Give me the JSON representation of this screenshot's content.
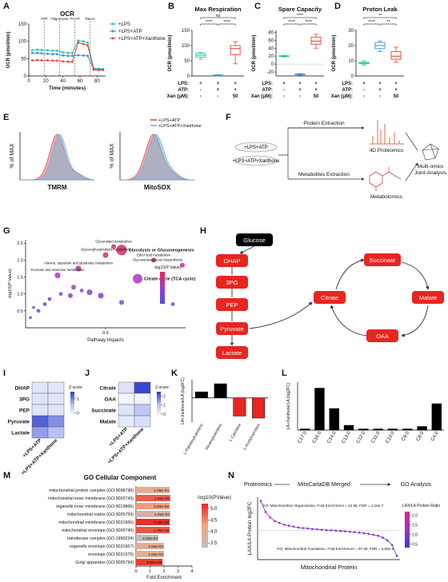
{
  "panel_labels": [
    "A",
    "B",
    "C",
    "D",
    "E",
    "F",
    "G",
    "H",
    "I",
    "J",
    "K",
    "L",
    "M",
    "N"
  ],
  "chart_data": [
    {
      "type": "line",
      "title": "OCR",
      "xlabel": "Time (minutes)",
      "ylabel": "OCR (pmol/min)",
      "x": [
        4,
        10,
        15,
        22,
        28,
        33,
        40,
        46,
        51,
        58,
        64,
        69,
        76,
        82,
        87
      ],
      "xlim": [
        0,
        90
      ],
      "ylim": [
        0,
        150
      ],
      "xticks": [
        0,
        20,
        40,
        60,
        80
      ],
      "yticks": [
        0,
        50,
        100,
        150
      ],
      "injections": {
        "labels": [
          "ATP",
          "Oligomycin",
          "FCCP",
          "R&AA"
        ],
        "x": [
          18,
          36,
          54,
          72
        ]
      },
      "series": [
        {
          "name": "+LPS",
          "color": "#26c6a4",
          "values": [
            74,
            76,
            75,
            74,
            73,
            73,
            68,
            67,
            66,
            102,
            100,
            96,
            22,
            21,
            20
          ]
        },
        {
          "name": "+LPS+ATP",
          "color": "#3a8fdf",
          "values": [
            66,
            66,
            65,
            64,
            63,
            63,
            59,
            58,
            58,
            60,
            59,
            58,
            20,
            19,
            19
          ]
        },
        {
          "name": "+LPS+ATP+Xanthone",
          "color": "#e8453c",
          "values": [
            45,
            46,
            45,
            45,
            44,
            44,
            42,
            41,
            41,
            97,
            92,
            88,
            18,
            17,
            17
          ]
        }
      ]
    },
    {
      "type": "box",
      "title": "Max Respiration",
      "ylabel": "OCR (pmol/min)",
      "ylim": [
        0,
        150
      ],
      "yticks": [
        0,
        50,
        100,
        150
      ],
      "groups": [
        {
          "color": "#26c6a4",
          "min": 55,
          "q1": 62,
          "median": 68,
          "q3": 74,
          "max": 78
        },
        {
          "color": "#3a8fdf",
          "min": 0,
          "q1": 1,
          "median": 2,
          "q3": 3,
          "max": 4
        },
        {
          "color": "#e8453c",
          "min": 40,
          "q1": 70,
          "median": 90,
          "q3": 100,
          "max": 112
        }
      ],
      "significance": [
        "ns",
        "****",
        "****"
      ],
      "conditions": {
        "labels": [
          "LPS:",
          "ATP:",
          "Xan (μM):"
        ],
        "cells": [
          [
            "+",
            "+",
            "+"
          ],
          [
            "-",
            "+",
            "+"
          ],
          [
            "-",
            "-",
            "50"
          ]
        ]
      }
    },
    {
      "type": "box",
      "title": "Spare Capacity",
      "ylabel": "OCR (pmol/min)",
      "ylim": [
        -30,
        85
      ],
      "yticks": [
        -20,
        0,
        20,
        40,
        60,
        80
      ],
      "groups": [
        {
          "color": "#26c6a4",
          "min": 18,
          "q1": 19,
          "median": 20,
          "q3": 21,
          "max": 22
        },
        {
          "color": "#3a8fdf",
          "min": -28,
          "q1": -27,
          "median": -26,
          "q3": -25,
          "max": -24
        },
        {
          "color": "#e8453c",
          "min": 40,
          "q1": 50,
          "median": 58,
          "q3": 68,
          "max": 75
        }
      ],
      "significance": [
        "****",
        "****",
        "****"
      ],
      "conditions": {
        "labels": [
          "LPS:",
          "ATP:",
          "Xan (μM):"
        ],
        "cells": [
          [
            "+",
            "+",
            "+"
          ],
          [
            "-",
            "+",
            "+"
          ],
          [
            "-",
            "-",
            "50"
          ]
        ]
      }
    },
    {
      "type": "box",
      "title": "Proton Leak",
      "ylabel": "OCR (pmol/min)",
      "ylim": [
        0,
        30
      ],
      "yticks": [
        0,
        10,
        20,
        30
      ],
      "groups": [
        {
          "color": "#26c6a4",
          "min": 7,
          "q1": 8,
          "median": 8.5,
          "q3": 9,
          "max": 10
        },
        {
          "color": "#3a8fdf",
          "min": 16,
          "q1": 18,
          "median": 20,
          "q3": 22,
          "max": 23
        },
        {
          "color": "#e8453c",
          "min": 9,
          "q1": 11,
          "median": 13,
          "q3": 16,
          "max": 19
        }
      ],
      "significance": [
        "**",
        "****",
        "**"
      ],
      "conditions": {
        "labels": [
          "LPS:",
          "ATP:",
          "Xan (μM):"
        ],
        "cells": [
          [
            "+",
            "+",
            "+"
          ],
          [
            "-",
            "+",
            "+"
          ],
          [
            "-",
            "-",
            "50"
          ]
        ]
      }
    },
    {
      "type": "flow-histogram",
      "ylabel": "% of MAX",
      "xlabels": [
        "TMRM",
        "MitoSOX"
      ],
      "series": [
        {
          "name": "+LPS+ATP",
          "color": "#e8453c"
        },
        {
          "name": "+LPS+ATP+Xanthone",
          "color": "#5ab4e8"
        }
      ]
    },
    {
      "type": "bubble",
      "xlabel": "Pathway Impacts",
      "ylabel": "-log10(P Value)",
      "legend_title": "-log10(P Value)",
      "xlim": [
        0,
        1
      ],
      "ylim": [
        0,
        2.6
      ],
      "xticks": [
        0.5
      ],
      "yticks": [
        0.5,
        {
          "value": 1,
          "label": "1.0"
        },
        1.5,
        {
          "value": 2,
          "label": "2.0"
        },
        2.5
      ],
      "labels": [
        "Glycerolipid metabolism",
        "Glycolysis or Gluconeogenesis",
        "Glycerophospholipid metabolism",
        "Ether lipid metabolism",
        "Alanine, aspartate and glutamate metabolism",
        "Glycosaminoglycan biosynthesis",
        "Fructose and mannose metabolism",
        "Citrate cycle (TCA cycle)",
        null,
        null,
        null,
        null,
        null,
        null,
        null,
        null,
        null,
        null,
        null,
        null,
        null
      ],
      "x": [
        0.55,
        0.6,
        0.5,
        0.8,
        0.33,
        0.98,
        0.2,
        0.7,
        0.3,
        0.35,
        0.4,
        0.22,
        0.28,
        0.15,
        0.12,
        0.05,
        0.08,
        0.03,
        0.47,
        0.6,
        0.92
      ],
      "y": [
        2.4,
        2.3,
        2.15,
        2.0,
        1.75,
        1.85,
        1.55,
        1.45,
        1.2,
        1.1,
        1.05,
        1.0,
        0.95,
        0.85,
        0.7,
        0.6,
        0.5,
        0.3,
        0.95,
        0.75,
        0.7
      ],
      "sizes": [
        4,
        10,
        5,
        4,
        5,
        4,
        5,
        9,
        4,
        3,
        5,
        3,
        4,
        3,
        3,
        2,
        3,
        2,
        5,
        4,
        3
      ]
    },
    {
      "type": "heatmap",
      "rows": [
        "DHAP",
        "3PG",
        "PEP",
        "Pyruvate",
        "Lactate"
      ],
      "columns": [
        "+LPS+ATP",
        "+LPS+ATP+Xanthone"
      ],
      "values": [
        [
          0.1,
          0.1
        ],
        [
          0.1,
          0.1
        ],
        [
          0.1,
          0.1
        ],
        [
          1.2,
          0.9
        ],
        [
          0.8,
          0.5
        ]
      ],
      "legend_title": "Z-score",
      "clim": [
        -0.2,
        1.5
      ],
      "cticks": [
        0,
        1
      ]
    },
    {
      "type": "heatmap",
      "rows": [
        "Citrate",
        "OAA",
        "Succinate",
        "Malate"
      ],
      "columns": [
        "+LPS+ATP",
        "+LPS+ATP+Xanthone"
      ],
      "values": [
        [
          0.3,
          2.3
        ],
        [
          0,
          0
        ],
        [
          0.3,
          0.8
        ],
        [
          0.2,
          0.4
        ]
      ],
      "legend_title": "Z-score",
      "clim": [
        -0.2,
        2.5
      ],
      "cticks": [
        0,
        1,
        2
      ]
    },
    {
      "type": "bar",
      "ylabel": "LA+Xanthone/LA (log2FC)",
      "categories": [
        "L-Palmitoylcarnitine",
        "Stearoylcarnitine",
        "L-Carnitine",
        "L-Acetylcarnitine"
      ],
      "values": [
        0.15,
        0.35,
        -0.45,
        -0.5
      ],
      "colors": [
        "#000000",
        "#000000",
        "#e8251f",
        "#e8251f"
      ],
      "ylim": [
        -0.6,
        0.45
      ]
    },
    {
      "type": "bar",
      "ylabel": "LA+Xanthone/LA (log2FC)",
      "categories": [
        "C17:0",
        "C16:0",
        "C14:0",
        "C13:0",
        "C12:0",
        "C11:0",
        "C10:0",
        "C9:0",
        "C8:0",
        "C4:0"
      ],
      "values": [
        0.1,
        3.5,
        1.8,
        0.4,
        0.1,
        0.1,
        0.1,
        0.1,
        0.3,
        2.2
      ],
      "color": "#000000",
      "ylim": [
        0,
        4
      ]
    },
    {
      "type": "hbar",
      "title": "GO Cellular Component",
      "xlabel": "Fold Enrichment",
      "categories": [
        "mitochondrial protein complex (GO:0098798)",
        "mitochondrial inner membrane (GO:0005743)",
        "organelle inner membrane (GO:0019866)",
        "mitochondrial matrix (GO:0005759)",
        "mitochondrial membrane (GO:0031966)",
        "mitochondrial envelope (GO:0005740)",
        "transferase complex (GO:1990234)",
        "organelle envelope (GO:0031967)",
        "envelope (GO:0031975)",
        "Golgi apparatus (GO:0005794)"
      ],
      "values": [
        2.4,
        2.45,
        2.4,
        2.45,
        2.4,
        2.4,
        1.6,
        2.0,
        2.0,
        1.9
      ],
      "pvalues": [
        0.000105,
        1.64e-05,
        4.83e-05,
        0.000191,
        7.45e-06,
        1.46e-05,
        0.000403,
        0.000104,
        0.000104,
        9.59e-06
      ],
      "pvalue_labels": [
        "1.05e-04",
        "1.64e-05",
        "4.83e-05",
        "1.91e-04",
        "7.45e-06",
        "1.46e-05",
        "4.03e-04",
        "1.04e-04",
        "1.04e-04",
        "9.59e-06"
      ],
      "xlim": [
        0,
        4
      ],
      "xticks": [
        0,
        1,
        2,
        3,
        4
      ],
      "legend_title": "-log10(PValue)",
      "clim": [
        3.3,
        5.2
      ],
      "cticks": [
        {
          "value": 5,
          "label": "5.0"
        },
        4.5,
        {
          "value": 4,
          "label": "4.0"
        },
        3.5
      ],
      "colors": [
        "#bdbdbd",
        "#f4a582",
        "#e8251f"
      ]
    },
    {
      "type": "rank-line",
      "xlabel": "Mitochondrial Protein",
      "ylabel": "LAX/LA Protein log2FC",
      "values": [
        1.6,
        1.0,
        0.7,
        0.5,
        0.4,
        0.3,
        0.25,
        0.2,
        0.15,
        0.12,
        0.1,
        0.07,
        0.05,
        0.03,
        0.01,
        0,
        -0.02,
        -0.04,
        -0.06,
        -0.08,
        -0.1,
        -0.13,
        -0.16,
        -0.2,
        -0.25,
        -0.3,
        -0.4,
        -0.55,
        -0.8,
        -1.4
      ],
      "ylim": [
        -1.6,
        1.8
      ],
      "annotations": [
        "GO: Mitochondrion Organization, Fold Enrichment = 22.98, FDR = 1.16e-7",
        "GO: Mitochondrial Translation, Fold Enrichment = 87.95, FDR = 5.88e-6"
      ],
      "legend_title": "LAX/LA Protein Ratio",
      "clim": [
        0.3,
        2.2
      ],
      "cticks": [
        {
          "value": 2,
          "label": "2.0"
        },
        1.5,
        {
          "value": 1,
          "label": "1.0"
        },
        0.5
      ],
      "colors": [
        "#3b3bd9",
        "#a22fc0",
        "#e8208a"
      ]
    }
  ],
  "workflow_f": {
    "groups": [
      "+LPS+ATP",
      "+LPS+ATP+Xanthone"
    ],
    "steps": [
      "Protein Extraction",
      "Metabolites Extraction"
    ],
    "outputs": [
      "4D Proteomics",
      "Metabolomics"
    ],
    "result": [
      "Multi-omics",
      "Joint-Analysis"
    ]
  },
  "pathway_h": {
    "nodes": [
      "Glucose",
      "DHAP",
      "3PG",
      "PEP",
      "Pyruvate",
      "Lactate",
      "Citrate",
      "Succinate",
      "Malate",
      "OAA"
    ]
  },
  "flow_n": [
    "Proteomics",
    "MitoCartaDB Merged",
    "GO Analysis"
  ]
}
